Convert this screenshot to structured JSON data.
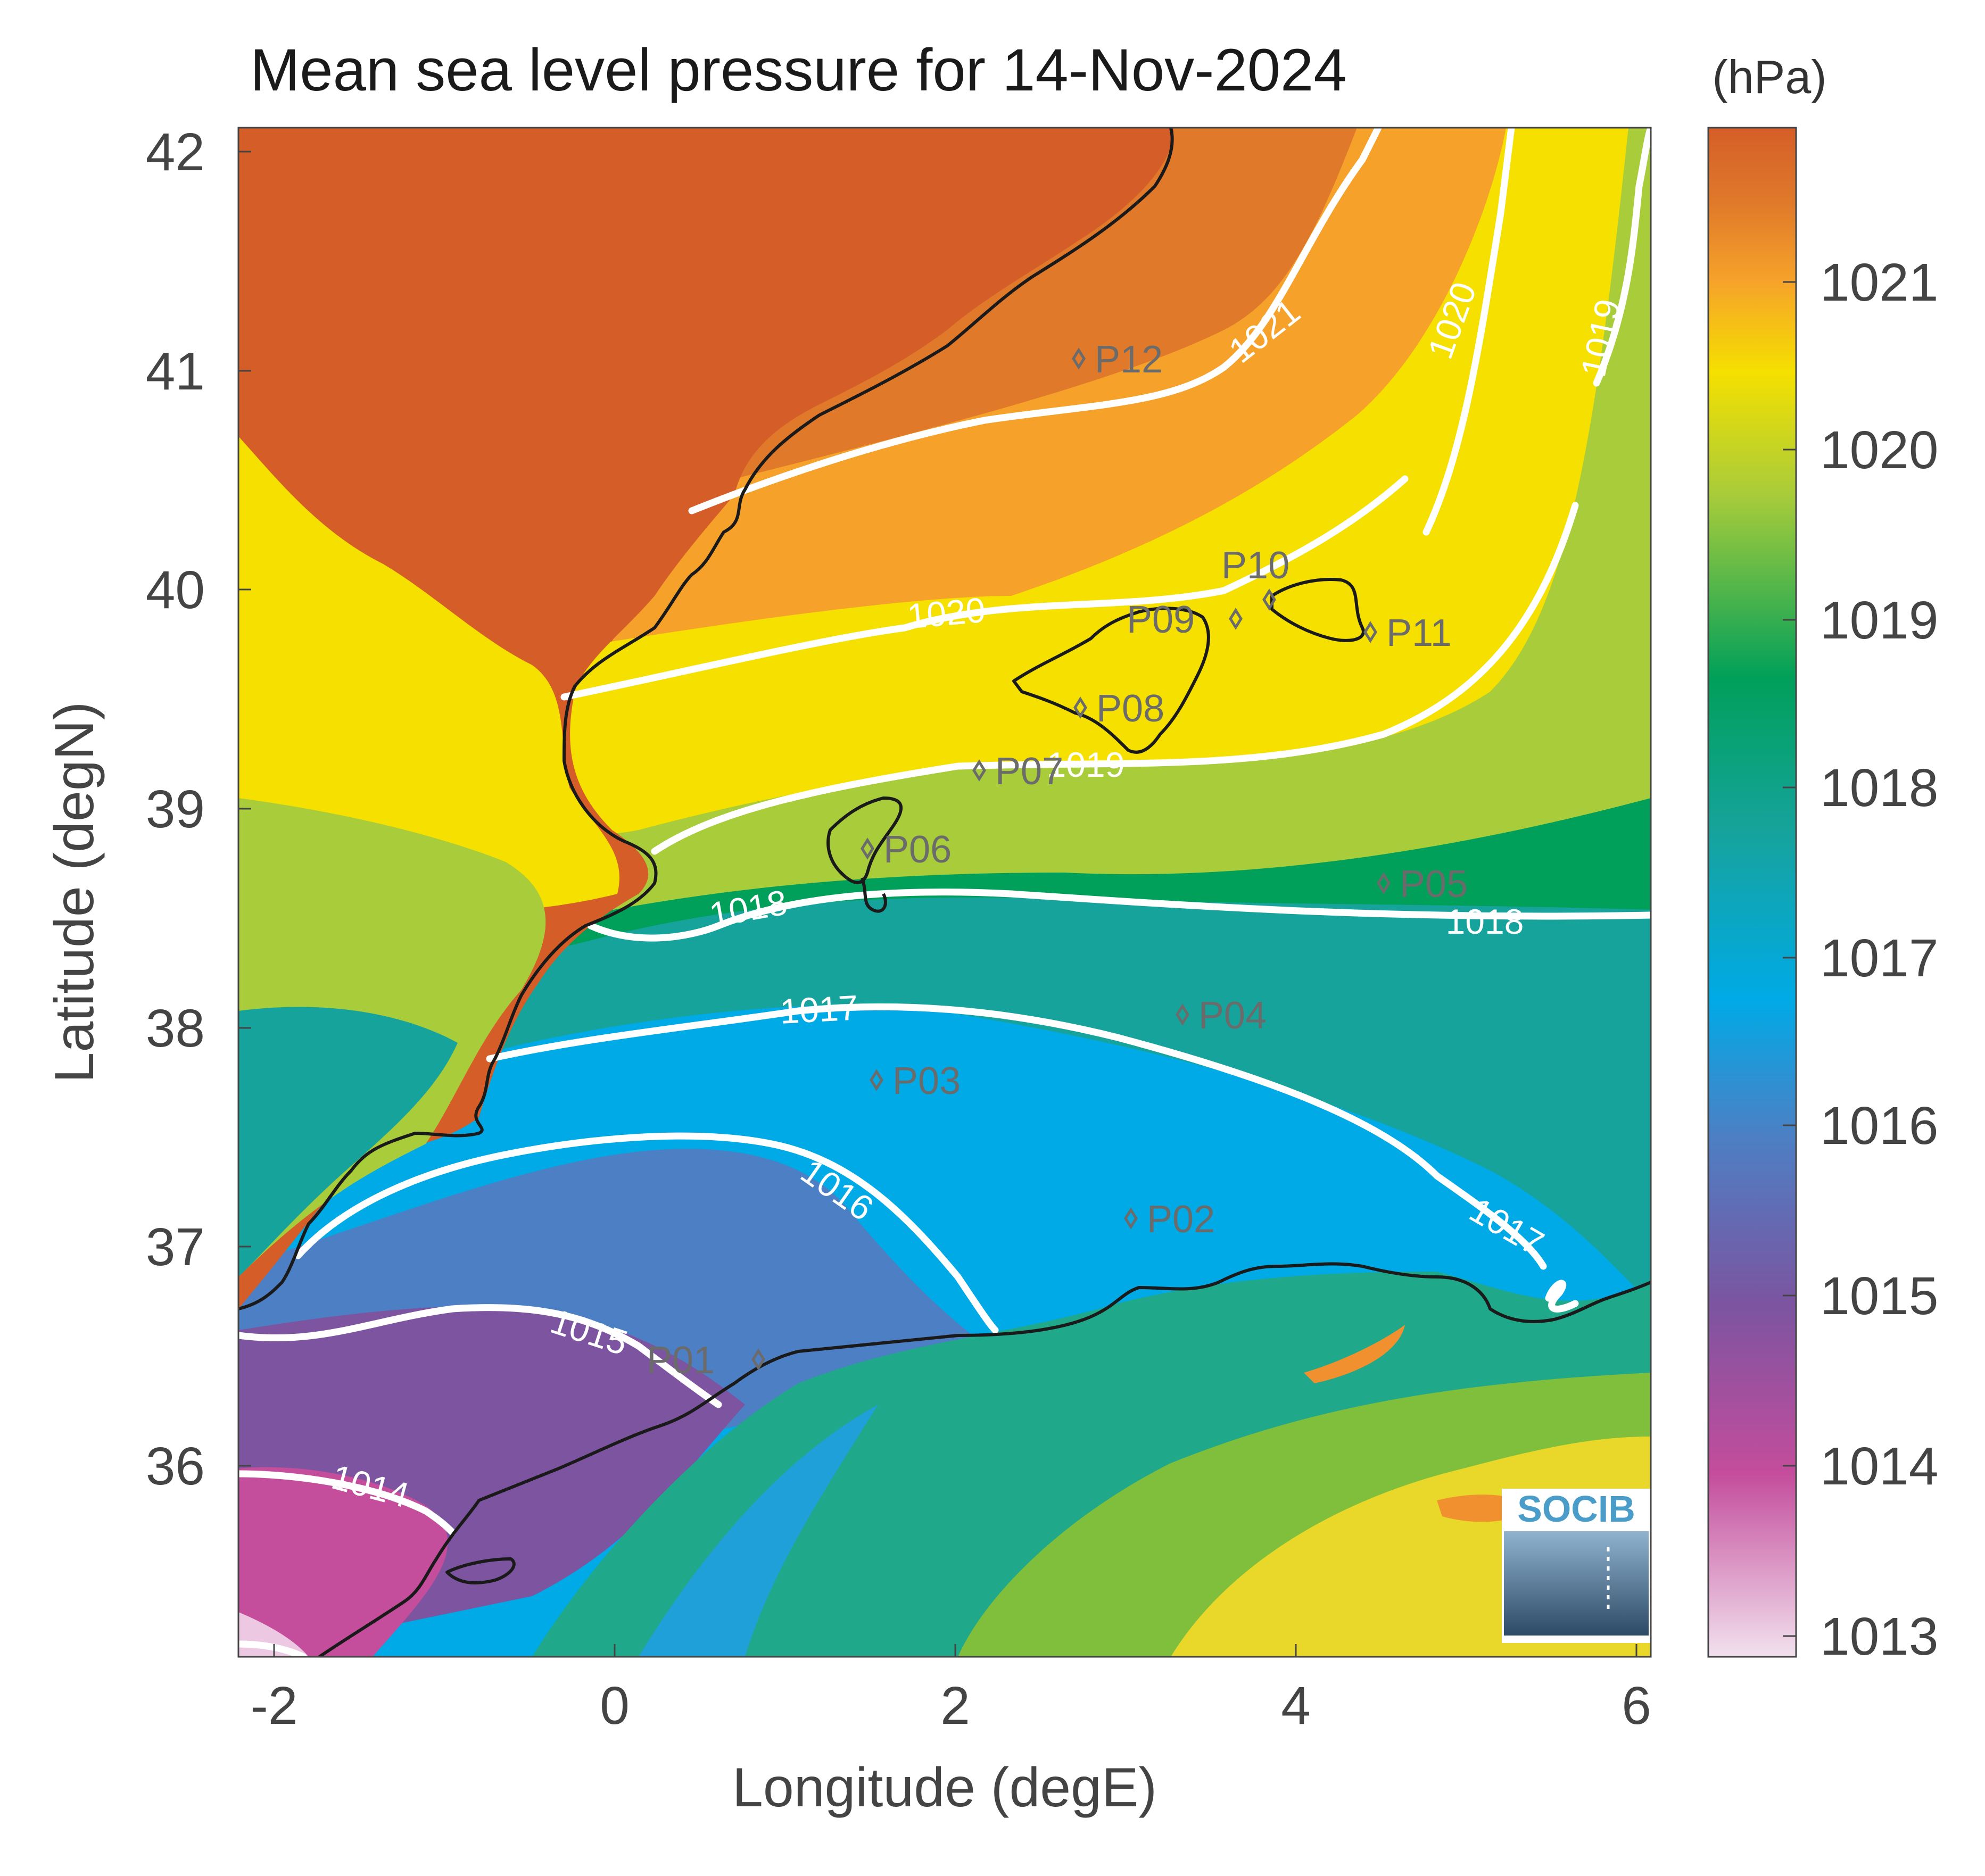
{
  "title": "Mean sea level pressure for 14-Nov-2024",
  "unit_label": "(hPa)",
  "x_axis": {
    "label": "Longitude (degE)",
    "ticks": [
      "-2",
      "0",
      "2",
      "4",
      "6"
    ]
  },
  "y_axis": {
    "label": "Latitude (degN)",
    "ticks": [
      "36",
      "37",
      "38",
      "39",
      "40",
      "41",
      "42"
    ]
  },
  "colorbar": {
    "ticks": [
      "1013",
      "1014",
      "1015",
      "1016",
      "1017",
      "1018",
      "1019",
      "1020",
      "1021"
    ]
  },
  "contour_labels": [
    "1021",
    "1020",
    "1019",
    "1020",
    "1019",
    "1018",
    "1018",
    "1017",
    "1017",
    "1016",
    "1015",
    "1014"
  ],
  "stations": [
    "P01",
    "P02",
    "P03",
    "P04",
    "P05",
    "P06",
    "P07",
    "P08",
    "P09",
    "P10",
    "P11",
    "P12"
  ],
  "logo_text": "SOCIB",
  "colors": {
    "p1013": "#e9c7df",
    "p1014": "#c44d9c",
    "p1015": "#7c54a0",
    "p1016": "#00aae6",
    "p1017": "#16a39c",
    "p1018": "#00a05a",
    "p1019": "#a8cc3a",
    "p1020": "#f5e000",
    "p1020_5": "#f6a22a",
    "p1021": "#e07a2a",
    "p1021_5": "#d55e28",
    "contour": "#ffffff",
    "coast": "#1a1a1a",
    "station": "#6b6b6b",
    "text": "#444444"
  },
  "chart_data": {
    "type": "heatmap",
    "title": "Mean sea level pressure for 14-Nov-2024",
    "xlabel": "Longitude (degE)",
    "ylabel": "Latitude (degN)",
    "xlim": [
      -2.2,
      6.1
    ],
    "ylim": [
      35.3,
      42.2
    ],
    "colorbar_unit": "(hPa)",
    "colorbar_range": [
      1012.9,
      1021.9
    ],
    "contour_levels": [
      1014,
      1015,
      1016,
      1017,
      1018,
      1019,
      1020,
      1021
    ],
    "stations": [
      {
        "name": "P01",
        "lon": 0.85,
        "lat": 36.5
      },
      {
        "name": "P02",
        "lon": 3.0,
        "lat": 37.15
      },
      {
        "name": "P03",
        "lon": 1.5,
        "lat": 37.8
      },
      {
        "name": "P04",
        "lon": 3.3,
        "lat": 38.1
      },
      {
        "name": "P05",
        "lon": 4.5,
        "lat": 38.7
      },
      {
        "name": "P06",
        "lon": 1.45,
        "lat": 38.85
      },
      {
        "name": "P07",
        "lon": 2.15,
        "lat": 39.2
      },
      {
        "name": "P08",
        "lon": 2.7,
        "lat": 39.5
      },
      {
        "name": "P09",
        "lon": 3.65,
        "lat": 39.9
      },
      {
        "name": "P10",
        "lon": 3.85,
        "lat": 40.0
      },
      {
        "name": "P11",
        "lon": 4.45,
        "lat": 39.85
      },
      {
        "name": "P12",
        "lon": 2.7,
        "lat": 41.1
      }
    ]
  }
}
